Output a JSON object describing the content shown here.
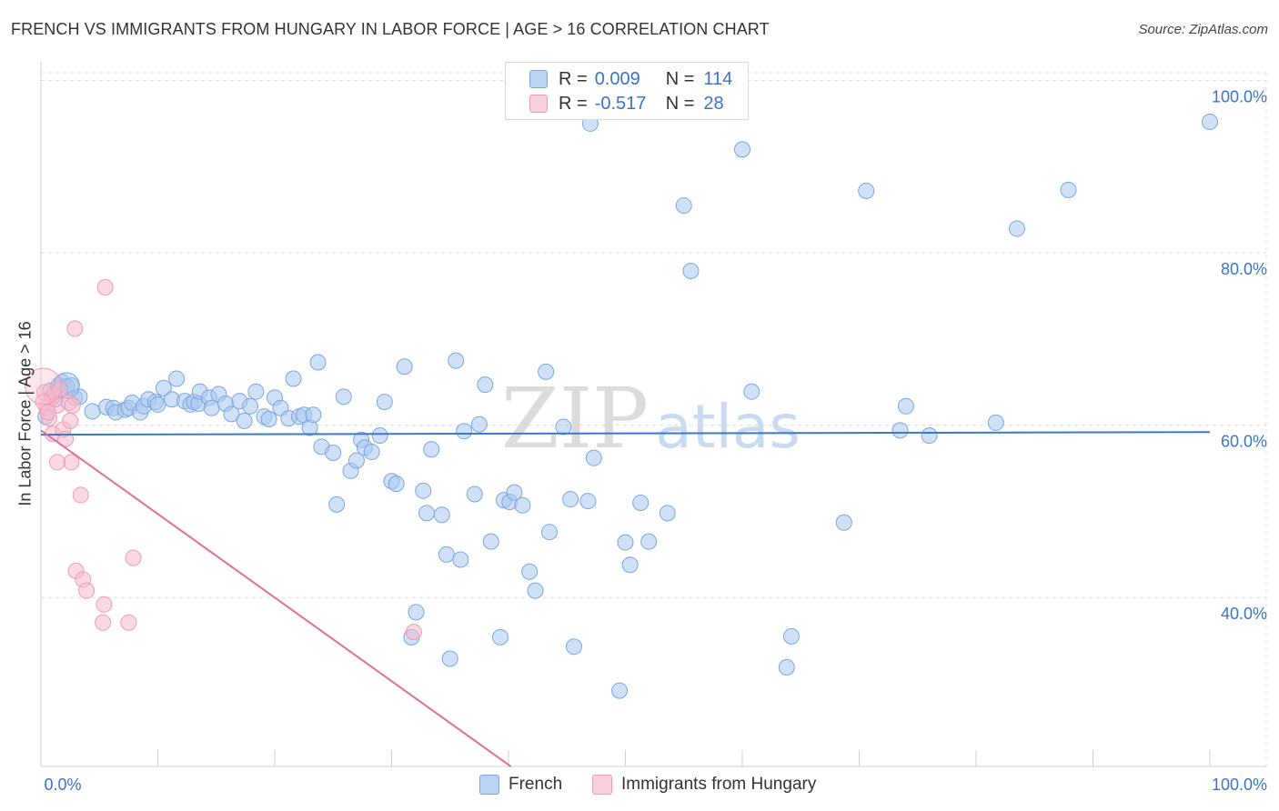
{
  "title": "FRENCH VS IMMIGRANTS FROM HUNGARY IN LABOR FORCE | AGE > 16 CORRELATION CHART",
  "source": "Source: ZipAtlas.com",
  "watermark": {
    "zip": "ZIP",
    "atlas": "atlas"
  },
  "legend": {
    "rows": [
      {
        "r_label": "R =",
        "r_value": "0.009",
        "n_label": "N =",
        "n_value": "114"
      },
      {
        "r_label": "R =",
        "r_value": "-0.517",
        "n_label": "N =",
        "n_value": "28"
      }
    ]
  },
  "bottom_legend": [
    "French",
    "Immigrants from Hungary"
  ],
  "colors": {
    "french_fill": "#a9c8f0",
    "french_stroke": "#7aa6df",
    "french_line": "#3a78cf",
    "hungary_fill": "#f7b9cc",
    "hungary_stroke": "#ee9ab4",
    "hungary_line": "#e0709a",
    "axis_text": "#3a74c9",
    "grid": "#d9dde3"
  },
  "chart_data": {
    "type": "scatter",
    "title": "FRENCH VS IMMIGRANTS FROM HUNGARY IN LABOR FORCE | AGE > 16 CORRELATION CHART",
    "xlabel": "",
    "ylabel": "In Labor Force | Age > 16",
    "xlim": [
      0,
      100
    ],
    "ylim": [
      20.4,
      100.9
    ],
    "x_tick_labels": [
      "0.0%",
      "100.0%"
    ],
    "y_ticks": [
      40,
      60,
      80,
      100
    ],
    "y_tick_labels": [
      "40.0%",
      "60.0%",
      "80.0%",
      "100.0%"
    ],
    "grid": true,
    "series": [
      {
        "name": "French",
        "R": 0.009,
        "N": 114,
        "trend": {
          "x": [
            0,
            100
          ],
          "y": [
            58.9,
            59.2
          ]
        },
        "points": [
          [
            0.4,
            61.0
          ],
          [
            0.8,
            64.0
          ],
          [
            1.2,
            63.0
          ],
          [
            1.5,
            64.6
          ],
          [
            1.8,
            65.0
          ],
          [
            2.2,
            64.5
          ],
          [
            2.6,
            64.6
          ],
          [
            2.9,
            63.2
          ],
          [
            3.3,
            63.3
          ],
          [
            4.4,
            61.6
          ],
          [
            5.6,
            62.1
          ],
          [
            6.2,
            62.0
          ],
          [
            6.4,
            61.5
          ],
          [
            7.2,
            61.8
          ],
          [
            7.5,
            62.0
          ],
          [
            7.8,
            62.6
          ],
          [
            8.5,
            61.5
          ],
          [
            8.8,
            62.2
          ],
          [
            9.2,
            63.0
          ],
          [
            9.8,
            62.7
          ],
          [
            10.0,
            62.4
          ],
          [
            10.5,
            64.3
          ],
          [
            11.2,
            63.0
          ],
          [
            11.6,
            65.4
          ],
          [
            12.3,
            62.8
          ],
          [
            12.8,
            62.4
          ],
          [
            13.1,
            62.7
          ],
          [
            13.5,
            62.5
          ],
          [
            13.6,
            63.9
          ],
          [
            14.4,
            63.2
          ],
          [
            14.6,
            62.0
          ],
          [
            15.2,
            63.6
          ],
          [
            15.8,
            62.5
          ],
          [
            16.3,
            61.3
          ],
          [
            17.0,
            62.8
          ],
          [
            17.4,
            60.5
          ],
          [
            17.9,
            62.2
          ],
          [
            18.4,
            63.9
          ],
          [
            19.1,
            61.0
          ],
          [
            19.5,
            60.7
          ],
          [
            20.0,
            63.2
          ],
          [
            20.5,
            62.0
          ],
          [
            21.2,
            60.8
          ],
          [
            21.6,
            65.4
          ],
          [
            22.1,
            61.0
          ],
          [
            22.5,
            61.2
          ],
          [
            23.0,
            59.7
          ],
          [
            23.3,
            61.2
          ],
          [
            23.7,
            67.3
          ],
          [
            24.0,
            57.5
          ],
          [
            25.0,
            56.8
          ],
          [
            25.3,
            50.8
          ],
          [
            25.9,
            63.3
          ],
          [
            26.5,
            54.7
          ],
          [
            27.0,
            55.9
          ],
          [
            27.4,
            58.3
          ],
          [
            27.7,
            57.4
          ],
          [
            28.3,
            56.9
          ],
          [
            29.0,
            58.8
          ],
          [
            29.4,
            62.7
          ],
          [
            30.0,
            53.5
          ],
          [
            30.4,
            53.2
          ],
          [
            31.1,
            66.8
          ],
          [
            31.7,
            35.4
          ],
          [
            32.1,
            38.3
          ],
          [
            32.7,
            52.4
          ],
          [
            33.0,
            49.8
          ],
          [
            33.4,
            57.2
          ],
          [
            34.3,
            49.6
          ],
          [
            34.7,
            45.0
          ],
          [
            35.0,
            32.9
          ],
          [
            35.5,
            67.5
          ],
          [
            35.9,
            44.4
          ],
          [
            36.2,
            59.3
          ],
          [
            37.1,
            52.0
          ],
          [
            37.5,
            60.1
          ],
          [
            38.0,
            64.7
          ],
          [
            38.5,
            46.5
          ],
          [
            39.3,
            35.4
          ],
          [
            39.6,
            51.3
          ],
          [
            40.1,
            51.1
          ],
          [
            40.5,
            52.2
          ],
          [
            41.2,
            50.7
          ],
          [
            41.8,
            43.0
          ],
          [
            42.3,
            40.8
          ],
          [
            43.2,
            66.2
          ],
          [
            43.5,
            47.6
          ],
          [
            44.7,
            59.8
          ],
          [
            45.3,
            51.4
          ],
          [
            45.6,
            34.3
          ],
          [
            46.8,
            51.2
          ],
          [
            47.0,
            95.0
          ],
          [
            47.3,
            56.2
          ],
          [
            49.5,
            29.2
          ],
          [
            50.0,
            46.4
          ],
          [
            50.4,
            43.8
          ],
          [
            51.3,
            51.0
          ],
          [
            52.0,
            46.5
          ],
          [
            53.6,
            49.8
          ],
          [
            55.0,
            85.5
          ],
          [
            55.6,
            77.9
          ],
          [
            60.0,
            92.0
          ],
          [
            60.8,
            63.9
          ],
          [
            63.8,
            31.9
          ],
          [
            64.2,
            35.5
          ],
          [
            68.7,
            48.7
          ],
          [
            70.6,
            87.2
          ],
          [
            73.5,
            59.4
          ],
          [
            74.0,
            62.2
          ],
          [
            76.0,
            58.8
          ],
          [
            81.7,
            60.3
          ],
          [
            83.5,
            82.8
          ],
          [
            87.9,
            87.3
          ],
          [
            100.0,
            95.2
          ]
        ]
      },
      {
        "name": "Immigrants from Hungary",
        "R": -0.517,
        "N": 28,
        "trend": {
          "x": [
            0,
            40.2
          ],
          "y": [
            59.4,
            20.4
          ]
        },
        "points": [
          [
            0.3,
            63.8
          ],
          [
            0.5,
            62.0
          ],
          [
            0.7,
            60.8
          ],
          [
            0.9,
            63.2
          ],
          [
            1.0,
            59.0
          ],
          [
            1.1,
            63.5
          ],
          [
            1.4,
            62.3
          ],
          [
            1.6,
            64.2
          ],
          [
            1.9,
            59.5
          ],
          [
            2.1,
            58.4
          ],
          [
            2.4,
            62.6
          ],
          [
            2.5,
            60.5
          ],
          [
            2.6,
            55.7
          ],
          [
            2.7,
            62.3
          ],
          [
            2.9,
            71.2
          ],
          [
            3.4,
            51.9
          ],
          [
            3.0,
            43.1
          ],
          [
            3.6,
            42.1
          ],
          [
            3.9,
            40.8
          ],
          [
            1.4,
            55.7
          ],
          [
            5.5,
            76.0
          ],
          [
            5.4,
            39.2
          ],
          [
            5.3,
            37.1
          ],
          [
            7.5,
            37.1
          ],
          [
            7.9,
            44.6
          ],
          [
            31.9,
            36.0
          ],
          [
            0.2,
            62.7
          ],
          [
            0.6,
            61.5
          ]
        ]
      }
    ]
  }
}
